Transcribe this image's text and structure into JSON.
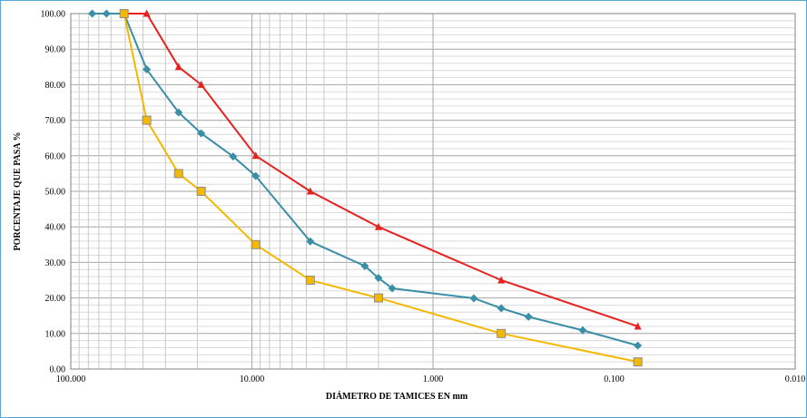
{
  "chart_data": {
    "type": "scatter",
    "title": "",
    "xlabel": "DIÁMETRO DE TAMICES EN mm",
    "ylabel": "PORCENTAJE QUE PASA %",
    "x_scale": "log",
    "x_reversed": true,
    "xlim": [
      100,
      0.01
    ],
    "ylim": [
      0,
      100
    ],
    "grid": true,
    "legend": "none",
    "x_tick_labels": [
      "100.000",
      "10.000",
      "1.000",
      "0.100",
      "0.010"
    ],
    "y_tick_labels": [
      "0.00",
      "10.00",
      "20.00",
      "30.00",
      "40.00",
      "50.00",
      "60.00",
      "70.00",
      "80.00",
      "90.00",
      "100.00"
    ],
    "series": [
      {
        "color": "#3a8ea6",
        "marker": "diamond",
        "points": [
          {
            "x": 76.2,
            "y": 100
          },
          {
            "x": 63.5,
            "y": 100
          },
          {
            "x": 50.8,
            "y": 100
          },
          {
            "x": 38.1,
            "y": 84.3
          },
          {
            "x": 25.4,
            "y": 72.2
          },
          {
            "x": 19.05,
            "y": 66.3
          },
          {
            "x": 12.7,
            "y": 59.8
          },
          {
            "x": 9.525,
            "y": 54.3
          },
          {
            "x": 4.76,
            "y": 35.9
          },
          {
            "x": 2.38,
            "y": 29.0
          },
          {
            "x": 2.0,
            "y": 25.6
          },
          {
            "x": 1.68,
            "y": 22.7
          },
          {
            "x": 0.595,
            "y": 19.9
          },
          {
            "x": 0.42,
            "y": 17.1
          },
          {
            "x": 0.297,
            "y": 14.7
          },
          {
            "x": 0.149,
            "y": 10.9
          },
          {
            "x": 0.074,
            "y": 6.6
          }
        ]
      },
      {
        "color": "#e8201e",
        "marker": "triangle",
        "points": [
          {
            "x": 50.8,
            "y": 100
          },
          {
            "x": 38.1,
            "y": 100
          },
          {
            "x": 25.4,
            "y": 85
          },
          {
            "x": 19.05,
            "y": 80
          },
          {
            "x": 9.525,
            "y": 60
          },
          {
            "x": 4.76,
            "y": 50
          },
          {
            "x": 2.0,
            "y": 40
          },
          {
            "x": 0.42,
            "y": 25
          },
          {
            "x": 0.074,
            "y": 12
          }
        ]
      },
      {
        "color": "#f5b800",
        "marker": "square",
        "points": [
          {
            "x": 50.8,
            "y": 100
          },
          {
            "x": 38.1,
            "y": 70
          },
          {
            "x": 25.4,
            "y": 55
          },
          {
            "x": 19.05,
            "y": 50
          },
          {
            "x": 9.525,
            "y": 35
          },
          {
            "x": 4.76,
            "y": 25
          },
          {
            "x": 2.0,
            "y": 20
          },
          {
            "x": 0.42,
            "y": 10
          },
          {
            "x": 0.074,
            "y": 2
          }
        ]
      }
    ]
  }
}
